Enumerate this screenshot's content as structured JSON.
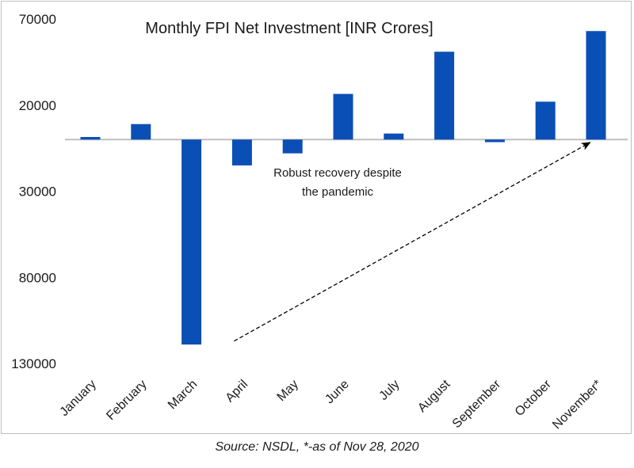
{
  "chart_data": {
    "type": "bar",
    "title": "Monthly FPI Net Investment [INR Crores]",
    "categories": [
      "January",
      "February",
      "March",
      "April",
      "May",
      "June",
      "July",
      "August",
      "September",
      "October",
      "November*"
    ],
    "values": [
      1500,
      9000,
      -119000,
      -15000,
      -8000,
      26500,
      3500,
      51000,
      -1500,
      22000,
      63000
    ],
    "ylim": [
      -130000,
      72000
    ],
    "yticks": [
      70000,
      20000,
      -30000,
      -80000,
      -130000
    ],
    "ytick_labels": [
      "70000",
      "20000",
      "30000",
      "80000",
      "130000"
    ],
    "annotation": {
      "line1": "Robust recovery despite",
      "line2": "the pandemic",
      "arrow_from": {
        "category": "April",
        "value": -117000
      },
      "arrow_to": {
        "category": "November*",
        "value": 0
      }
    },
    "bar_color": "#0a4fb5",
    "xlabel": "",
    "ylabel": ""
  },
  "footer": {
    "source": "Source: NSDL, *-as of Nov 28, 2020"
  }
}
